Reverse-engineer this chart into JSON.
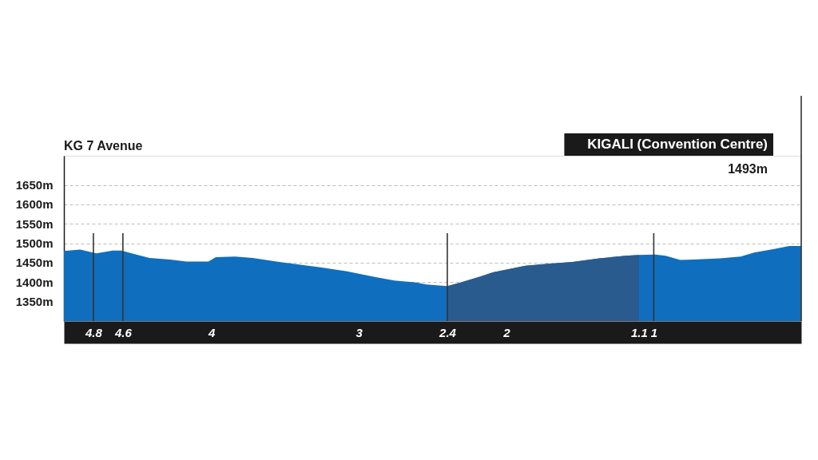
{
  "chart_data": {
    "type": "area",
    "annotations": [
      "KG 7 Avenue",
      "KIGALI (Convention Centre)",
      "1493m"
    ],
    "xlim": [
      5,
      0
    ],
    "xticks": [
      4.8,
      4.6,
      4,
      3,
      2.4,
      2,
      1.1,
      1
    ],
    "ylim": [
      1300,
      1725
    ],
    "yticks": [
      {
        "value": 1350,
        "label": "1350m"
      },
      {
        "value": 1400,
        "label": "1400m"
      },
      {
        "value": 1450,
        "label": "1450m"
      },
      {
        "value": 1500,
        "label": "1500m"
      },
      {
        "value": 1550,
        "label": "1550m"
      },
      {
        "value": 1600,
        "label": "1600m"
      },
      {
        "value": 1650,
        "label": "1650m"
      }
    ],
    "grid": "y",
    "series": [
      {
        "color": "#106ebe",
        "x": [
          5,
          4.89,
          4.78,
          4.67,
          4.61,
          4.53,
          4.42,
          4.28,
          4.17,
          4.02,
          3.97,
          3.84,
          3.72,
          3.54,
          3.26,
          3.08,
          2.9,
          2.76,
          2.61,
          2.54,
          2.4,
          2.31,
          2.18,
          2.09,
          1.87,
          1.73,
          1.55,
          1.37,
          1.19,
          1.1,
          0.99,
          0.92,
          0.82,
          0.73,
          0.55,
          0.41,
          0.32,
          0.19,
          0.08,
          0
        ],
        "values": [
          1480,
          1484,
          1474,
          1481,
          1481,
          1473,
          1462,
          1458,
          1453,
          1453,
          1464,
          1466,
          1462,
          1452,
          1438,
          1428,
          1414,
          1404,
          1399,
          1394,
          1390,
          1399,
          1414,
          1425,
          1442,
          1447,
          1452,
          1461,
          1468,
          1470,
          1471,
          1468,
          1457,
          1458,
          1461,
          1466,
          1476,
          1485,
          1493,
          1493
        ]
      },
      {
        "color": "#2a5b8e",
        "x": [
          2.4,
          2.31,
          2.18,
          2.09,
          1.87,
          1.73,
          1.55,
          1.37,
          1.19,
          1.1
        ],
        "values": [
          1390,
          1399,
          1414,
          1425,
          1442,
          1447,
          1452,
          1461,
          1468,
          1470
        ]
      }
    ],
    "ref_lines": [
      {
        "axis": "x",
        "value": 4.8
      },
      {
        "axis": "x",
        "value": 4.6
      },
      {
        "axis": "x",
        "value": 2.4
      },
      {
        "axis": "x",
        "value": 1
      },
      {
        "axis": "x",
        "value": 0
      }
    ]
  }
}
